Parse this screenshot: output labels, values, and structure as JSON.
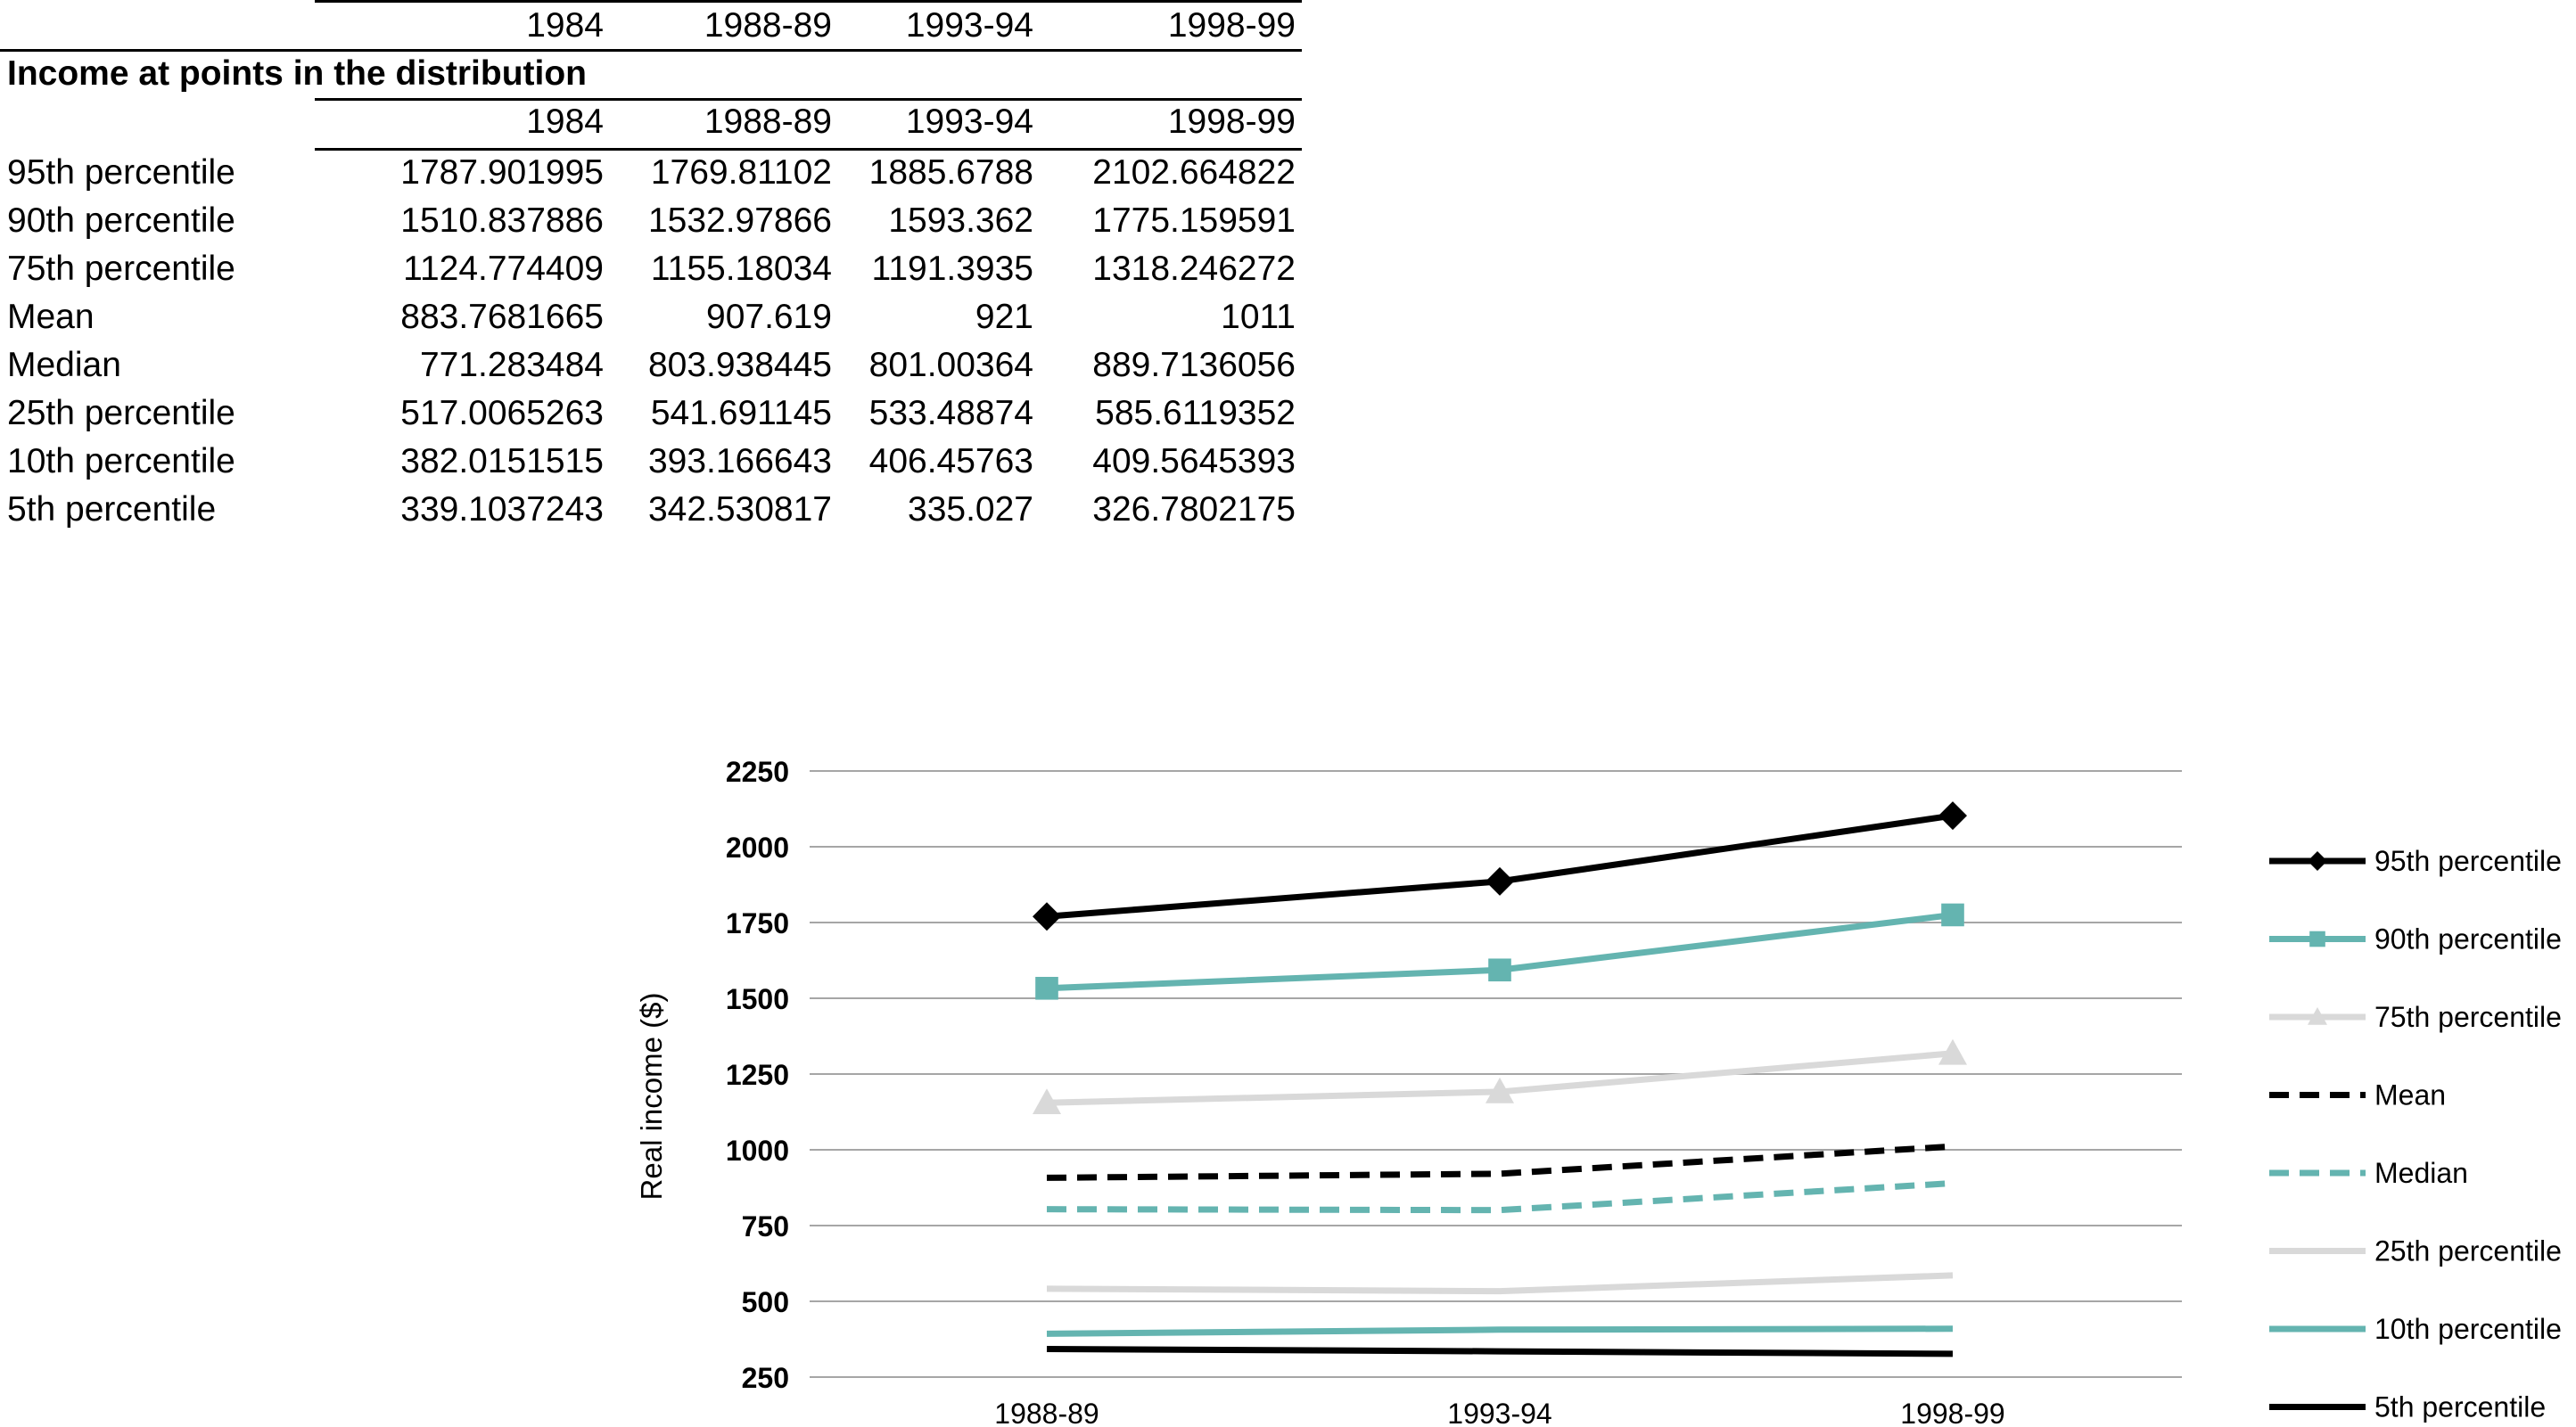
{
  "table": {
    "header_years": [
      "1984",
      "1988-89",
      "1993-94",
      "1998-99"
    ],
    "section_title": "Income at points in the distribution",
    "sub_header_years": [
      "1984",
      "1988-89",
      "1993-94",
      "1998-99"
    ],
    "rows": [
      {
        "label": "95th percentile",
        "values": [
          "1787.901995",
          "1769.81102",
          "1885.6788",
          "2102.664822"
        ]
      },
      {
        "label": "90th percentile",
        "values": [
          "1510.837886",
          "1532.97866",
          "1593.362",
          "1775.159591"
        ]
      },
      {
        "label": "75th percentile",
        "values": [
          "1124.774409",
          "1155.18034",
          "1191.3935",
          "1318.246272"
        ]
      },
      {
        "label": "Mean",
        "values": [
          "883.7681665",
          "907.619",
          "921",
          "1011"
        ]
      },
      {
        "label": "Median",
        "values": [
          "771.283484",
          "803.938445",
          "801.00364",
          "889.7136056"
        ]
      },
      {
        "label": "25th percentile",
        "values": [
          "517.0065263",
          "541.691145",
          "533.48874",
          "585.6119352"
        ]
      },
      {
        "label": "10th percentile",
        "values": [
          "382.0151515",
          "393.166643",
          "406.45763",
          "409.5645393"
        ]
      },
      {
        "label": "5th percentile",
        "values": [
          "339.1037243",
          "342.530817",
          "335.027",
          "326.7802175"
        ]
      }
    ]
  },
  "chart_data": {
    "type": "line",
    "categories": [
      "1988-89",
      "1993-94",
      "1998-99"
    ],
    "ylabel": "Real income ($)",
    "ylim": [
      250,
      2250
    ],
    "yticks": [
      "250",
      "500",
      "750",
      "1000",
      "1250",
      "1500",
      "1750",
      "2000",
      "2250"
    ],
    "grid": true,
    "legend_position": "right",
    "series": [
      {
        "name": "95th percentile",
        "values": [
          1769.81102,
          1885.6788,
          2102.664822
        ],
        "color": "#000000",
        "dash": false,
        "marker": "diamond"
      },
      {
        "name": "90th percentile",
        "values": [
          1532.97866,
          1593.362,
          1775.159591
        ],
        "color": "#64b4b0",
        "dash": false,
        "marker": "square"
      },
      {
        "name": "75th percentile",
        "values": [
          1155.18034,
          1191.3935,
          1318.246272
        ],
        "color": "#d9d9d9",
        "dash": false,
        "marker": "triangle"
      },
      {
        "name": "Mean",
        "values": [
          907.619,
          921,
          1011
        ],
        "color": "#000000",
        "dash": true,
        "marker": "none"
      },
      {
        "name": "Median",
        "values": [
          803.938445,
          801.00364,
          889.7136056
        ],
        "color": "#64b4b0",
        "dash": true,
        "marker": "none"
      },
      {
        "name": "25th percentile",
        "values": [
          541.691145,
          533.48874,
          585.6119352
        ],
        "color": "#d9d9d9",
        "dash": false,
        "marker": "none"
      },
      {
        "name": "10th percentile",
        "values": [
          393.166643,
          406.45763,
          409.5645393
        ],
        "color": "#64b4b0",
        "dash": false,
        "marker": "none"
      },
      {
        "name": "5th percentile",
        "values": [
          342.530817,
          335.027,
          326.7802175
        ],
        "color": "#000000",
        "dash": false,
        "marker": "none"
      }
    ]
  }
}
